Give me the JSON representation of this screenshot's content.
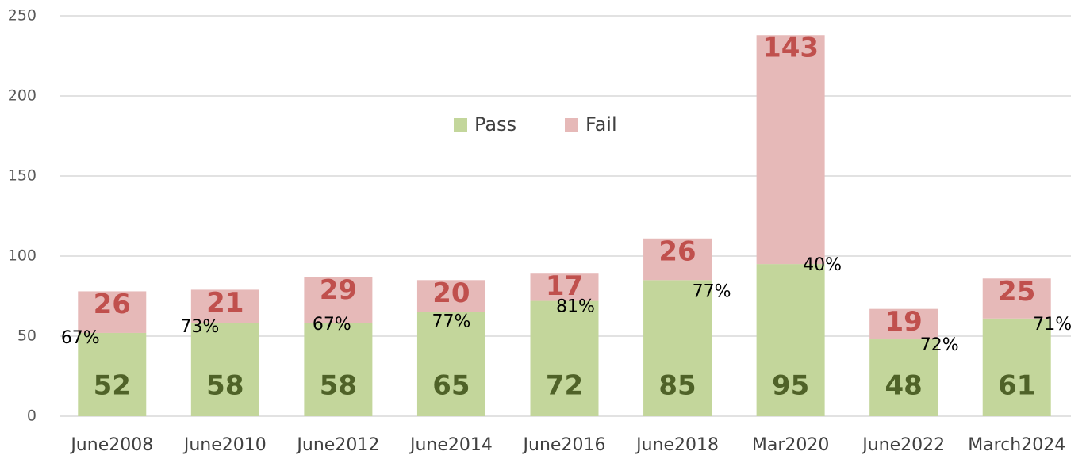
{
  "chart_data": {
    "type": "stacked_bar",
    "categories": [
      "June2008",
      "June2010",
      "June2012",
      "June2014",
      "June2016",
      "June2018",
      "Mar2020",
      "June2022",
      "March2024"
    ],
    "series": [
      {
        "name": "Pass",
        "color": "#c3d69b",
        "values": [
          52,
          58,
          58,
          65,
          72,
          85,
          95,
          48,
          61
        ]
      },
      {
        "name": "Fail",
        "color": "#e6b9b8",
        "values": [
          26,
          21,
          29,
          20,
          17,
          26,
          143,
          19,
          25
        ]
      }
    ],
    "annotations": [
      "67%",
      "73%",
      "67%",
      "77%",
      "81%",
      "77%",
      "40%",
      "72%",
      "71%"
    ],
    "ylim": [
      0,
      250
    ],
    "yticks": [
      0,
      50,
      100,
      150,
      200,
      250
    ],
    "grid": true
  }
}
